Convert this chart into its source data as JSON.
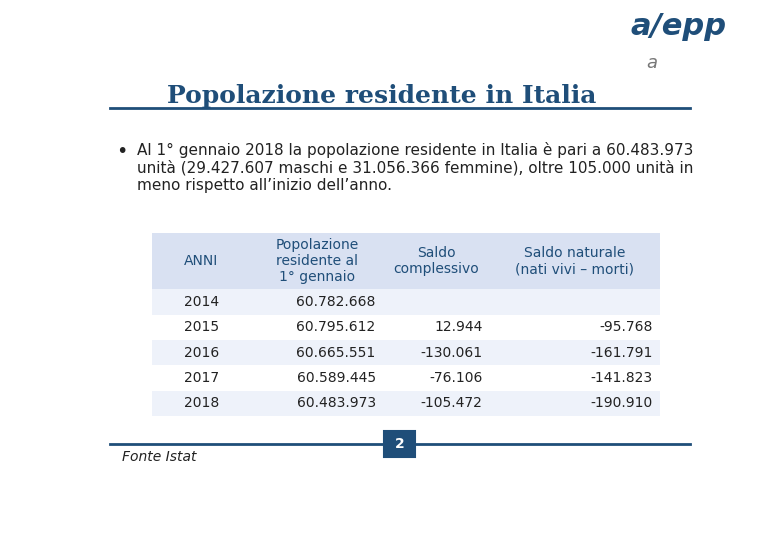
{
  "title": "Popolazione residente in Italia",
  "title_color": "#1F4E79",
  "title_fontsize": 18,
  "background_color": "#FFFFFF",
  "bullet_text": "Al 1° gennaio 2018 la popolazione residente in Italia è pari a 60.483.973\nunità (29.427.607 maschi e 31.056.366 femmine), oltre 105.000 unità in\nmeno rispetto all’inizio dell’anno.",
  "bullet_fontsize": 11,
  "table_header_bg": "#D9E1F2",
  "table_row_bg_odd": "#EEF2FA",
  "table_row_bg_even": "#FFFFFF",
  "table_text_color": "#1F4E79",
  "table_fontsize": 10,
  "col_headers": [
    "ANNI",
    "Popolazione\nresidente al\n1° gennaio",
    "Saldo\ncomplessivo",
    "Saldo naturale\n(nati vivi – morti)"
  ],
  "rows": [
    [
      "2014",
      "60.782.668",
      "",
      ""
    ],
    [
      "2015",
      "60.795.612",
      "12.944",
      "-95.768"
    ],
    [
      "2016",
      "60.665.551",
      "-130.061",
      "-161.791"
    ],
    [
      "2017",
      "60.589.445",
      "-76.106",
      "-141.823"
    ],
    [
      "2018",
      "60.483.973",
      "-105.472",
      "-190.910"
    ]
  ],
  "footer_text": "Fonte Istat",
  "footer_page": "2",
  "line_color": "#1F4E79"
}
